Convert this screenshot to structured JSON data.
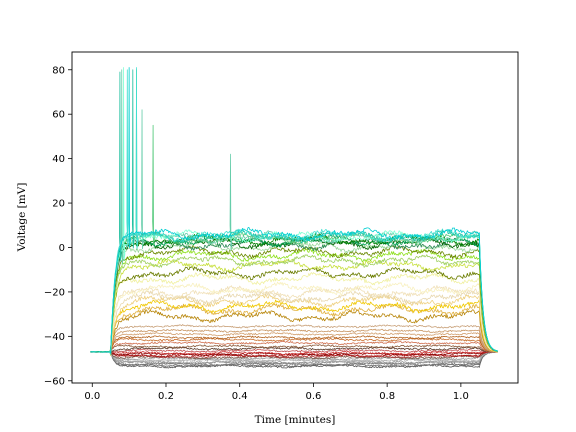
{
  "chart_data": {
    "type": "line",
    "title": "",
    "xlabel": "Time [minutes]",
    "ylabel": "Voltage [mV]",
    "xlim": [
      -0.055,
      1.155
    ],
    "ylim": [
      -61,
      88
    ],
    "xticks": [
      0.0,
      0.2,
      0.4,
      0.6,
      0.8,
      1.0
    ],
    "xtick_labels": [
      "0.0",
      "0.2",
      "0.4",
      "0.6",
      "0.8",
      "1.0"
    ],
    "yticks": [
      -60,
      -40,
      -20,
      0,
      20,
      40,
      60,
      80
    ],
    "ytick_labels": [
      "−60",
      "−40",
      "−20",
      "0",
      "20",
      "40",
      "60",
      "80"
    ],
    "grid": false,
    "baseline_mV": -47,
    "step_on_min": 0.05,
    "step_off_min": 1.05,
    "trace_end_min": 1.1,
    "series": [
      {
        "color": "#555555",
        "plateau": -53.5,
        "spikes": []
      },
      {
        "color": "#666666",
        "plateau": -53,
        "spikes": []
      },
      {
        "color": "#777777",
        "plateau": -52.5,
        "spikes": []
      },
      {
        "color": "#888888",
        "plateau": -52,
        "spikes": []
      },
      {
        "color": "#999999",
        "plateau": -51.5,
        "spikes": []
      },
      {
        "color": "#aaaaaa",
        "plateau": -51,
        "spikes": []
      },
      {
        "color": "#bbbbbb",
        "plateau": -50.5,
        "spikes": []
      },
      {
        "color": "#9e9e9e",
        "plateau": -50,
        "spikes": []
      },
      {
        "color": "#7a5a4a",
        "plateau": -49.5,
        "spikes": []
      },
      {
        "color": "#b34040",
        "plateau": -49,
        "spikes": []
      },
      {
        "color": "#aa1111",
        "plateau": -48.5,
        "spikes": []
      },
      {
        "color": "#8b0000",
        "plateau": -48,
        "spikes": []
      },
      {
        "color": "#cc3333",
        "plateau": -47.5,
        "spikes": []
      },
      {
        "color": "#c05050",
        "plateau": -46.5,
        "spikes": []
      },
      {
        "color": "#5a3a2a",
        "plateau": -45.5,
        "spikes": []
      },
      {
        "color": "#8a5a3a",
        "plateau": -44.5,
        "spikes": []
      },
      {
        "color": "#d07050",
        "plateau": -43,
        "spikes": []
      },
      {
        "color": "#c87030",
        "plateau": -41.5,
        "spikes": []
      },
      {
        "color": "#b46420",
        "plateau": -40.5,
        "spikes": []
      },
      {
        "color": "#d2a070",
        "plateau": -39,
        "spikes": []
      },
      {
        "color": "#c89664",
        "plateau": -37.5,
        "spikes": []
      },
      {
        "color": "#c8a078",
        "plateau": -35.5,
        "spikes": []
      },
      {
        "color": "#b8860b",
        "plateau": -31,
        "spikes": []
      },
      {
        "color": "#e0b040",
        "plateau": -28,
        "spikes": []
      },
      {
        "color": "#f0c800",
        "plateau": -26.5,
        "spikes": []
      },
      {
        "color": "#eed080",
        "plateau": -24,
        "spikes": []
      },
      {
        "color": "#e8d8b0",
        "plateau": -22.5,
        "spikes": []
      },
      {
        "color": "#f0e0b8",
        "plateau": -20,
        "spikes": []
      },
      {
        "color": "#f8f0c0",
        "plateau": -18.5,
        "spikes": []
      },
      {
        "color": "#f0f0a0",
        "plateau": -14,
        "spikes": []
      },
      {
        "color": "#6b7d00",
        "plateau": -11.5,
        "spikes": []
      },
      {
        "color": "#c8e040",
        "plateau": -8,
        "spikes": []
      },
      {
        "color": "#a0d060",
        "plateau": -6,
        "spikes": []
      },
      {
        "color": "#90e020",
        "plateau": -3.5,
        "spikes": []
      },
      {
        "color": "#6a8a00",
        "plateau": -2,
        "spikes": []
      },
      {
        "color": "#9cd89c",
        "plateau": 0.5,
        "spikes": []
      },
      {
        "color": "#2e8b57",
        "plateau": 1.5,
        "spikes": []
      },
      {
        "color": "#006400",
        "plateau": 2,
        "spikes": []
      },
      {
        "color": "#00a050",
        "plateau": 3,
        "spikes": []
      },
      {
        "color": "#008000",
        "plateau": 3.5,
        "spikes": []
      },
      {
        "color": "#50c878",
        "plateau": 4,
        "spikes": [
          [
            0.12,
            80
          ],
          [
            0.165,
            55
          ]
        ]
      },
      {
        "color": "#66cdaa",
        "plateau": 4.5,
        "spikes": [
          [
            0.08,
            80
          ],
          [
            0.135,
            62
          ],
          [
            0.375,
            42
          ]
        ]
      },
      {
        "color": "#7fffd4",
        "plateau": 5,
        "spikes": [
          [
            0.085,
            81
          ]
        ]
      },
      {
        "color": "#20c0a0",
        "plateau": 5,
        "spikes": [
          [
            0.075,
            79
          ],
          [
            0.11,
            80
          ]
        ]
      },
      {
        "color": "#40e0d0",
        "plateau": 5.5,
        "spikes": [
          [
            0.095,
            80
          ],
          [
            0.12,
            81
          ]
        ]
      },
      {
        "color": "#00ced1",
        "plateau": 6,
        "spikes": [
          [
            0.1,
            81
          ]
        ]
      }
    ]
  }
}
